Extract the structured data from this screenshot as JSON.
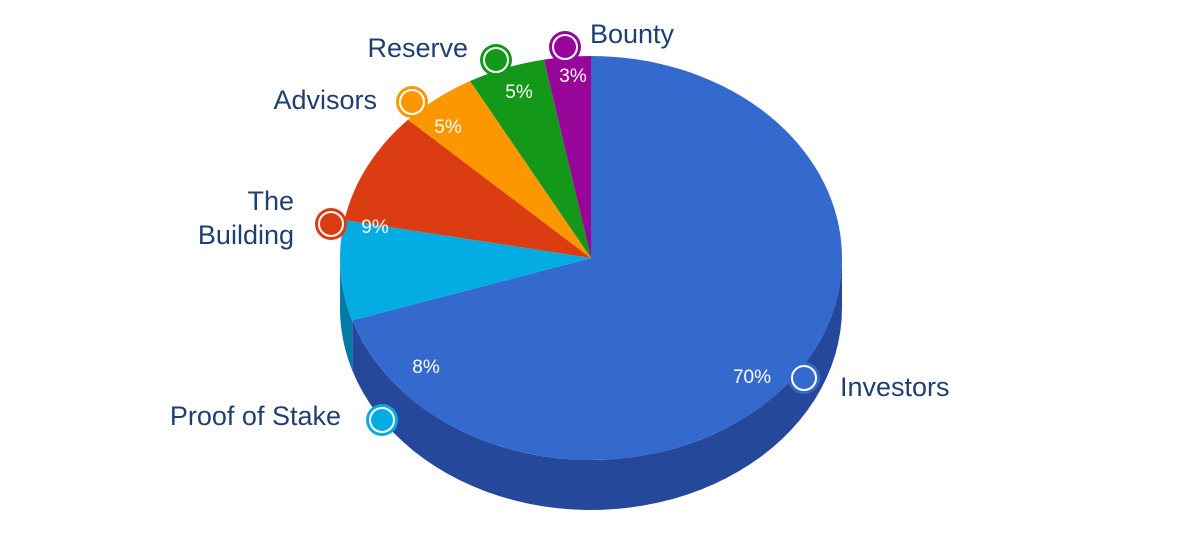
{
  "chart_data": {
    "type": "pie",
    "title": "",
    "subtitle": "",
    "style": "3d-tilted",
    "legend": "none",
    "slices": [
      {
        "label": "Investors",
        "percent_label": "70%",
        "value": 70,
        "color": "#3469cd",
        "side_color": "#25489a"
      },
      {
        "label": "Proof of Stake",
        "percent_label": "8%",
        "value": 8,
        "color": "#03ade4",
        "side_color": "#037aa7"
      },
      {
        "label": "The Building",
        "label_lines": [
          "The",
          "Building"
        ],
        "percent_label": "9%",
        "value": 9,
        "color": "#dc3c12",
        "side_color": "#a32b0c"
      },
      {
        "label": "Advisors",
        "percent_label": "5%",
        "value": 5,
        "color": "#fd9700",
        "side_color": "#c07200"
      },
      {
        "label": "Reserve",
        "percent_label": "5%",
        "value": 5,
        "color": "#139819",
        "side_color": "#0d6d12"
      },
      {
        "label": "Bounty",
        "percent_label": "3%",
        "value": 3,
        "color": "#980599",
        "side_color": "#6d036e"
      }
    ]
  }
}
